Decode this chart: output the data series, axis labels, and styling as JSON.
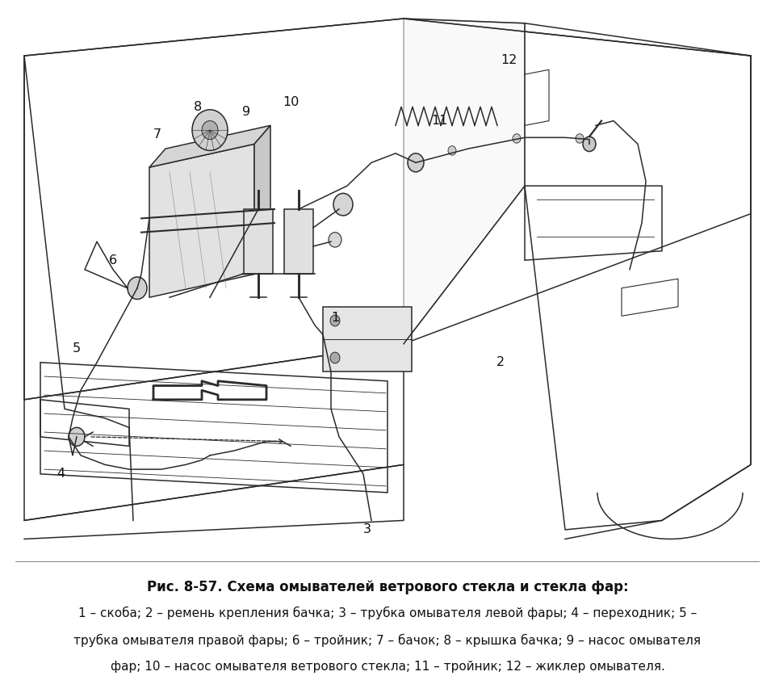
{
  "background_color": "#ffffff",
  "title": "Рис. 8-57. Схема омывателей ветрового стекла и стекла фар:",
  "caption_line1": "1 – скоба; 2 – ремень крепления бачка; 3 – трубка омывателя левой фары; 4 – переходник; 5 –",
  "caption_line2": "трубка омывателя правой фары; 6 – тройник; 7 – бачок; 8 – крышка бачка; 9 – насос омывателя",
  "caption_line3": "фар; 10 – насос омывателя ветрового стекла; 11 – тройник; 12 – жиклер омывателя.",
  "figure_width": 9.6,
  "figure_height": 8.42,
  "dpi": 100
}
